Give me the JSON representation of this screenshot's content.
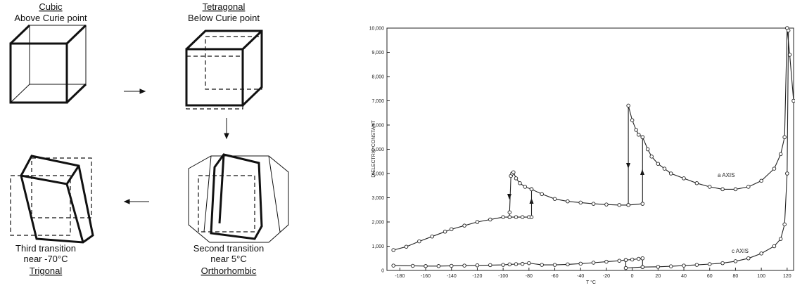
{
  "diagram": {
    "panels": [
      {
        "name": "Cubic",
        "lines": [
          "Above Curie point"
        ]
      },
      {
        "name": "Tetragonal",
        "lines": [
          "Below Curie point"
        ]
      },
      {
        "name": "Orthorhombic",
        "lines": [
          "Second transition",
          "near 5°C"
        ]
      },
      {
        "name": "Trigonal",
        "lines": [
          "Third transition",
          "near -70°C"
        ]
      }
    ]
  },
  "chart_data": {
    "type": "line",
    "x_label": "T °C",
    "y_label": "DIELECTRIC CONSTANT",
    "xlim": [
      -190,
      125
    ],
    "ylim": [
      0,
      10000
    ],
    "xticks": [
      -180,
      -160,
      -140,
      -120,
      -100,
      -80,
      -60,
      -40,
      -20,
      0,
      20,
      40,
      60,
      80,
      100,
      120
    ],
    "yticks": [
      0,
      {
        "value": 1000,
        "label": "1,000"
      },
      {
        "value": 2000,
        "label": "2,000"
      },
      {
        "value": 3000,
        "label": "3,000"
      },
      {
        "value": 4000,
        "label": "4,000"
      },
      {
        "value": 5000,
        "label": "5,000"
      },
      {
        "value": 6000,
        "label": "6,000"
      },
      {
        "value": 7000,
        "label": "7,000"
      },
      {
        "value": 8000,
        "label": "8,000"
      },
      {
        "value": 9000,
        "label": "9,000"
      },
      {
        "value": 10000,
        "label": "10,000"
      }
    ],
    "series": [
      {
        "name": "a AXIS",
        "color": "#222222",
        "x": [
          -185,
          -175,
          -165,
          -155,
          -145,
          -140,
          -130,
          -120,
          -110,
          -100,
          -95,
          -90,
          -85,
          -80,
          -78,
          -78,
          -70,
          -60,
          -50,
          -40,
          -30,
          -20,
          -10,
          -3,
          8,
          8,
          12,
          15,
          20,
          25,
          30,
          40,
          50,
          60,
          70,
          80,
          90,
          100,
          110,
          115,
          118,
          120,
          122,
          125,
          null,
          -95,
          -95,
          -94,
          -93,
          -92,
          -90,
          -87,
          -83,
          -78,
          null,
          -3,
          -3,
          0,
          3,
          5,
          8
        ],
        "values": [
          840,
          980,
          1200,
          1400,
          1600,
          1700,
          1850,
          2000,
          2100,
          2200,
          2200,
          2200,
          2200,
          2200,
          2200,
          3350,
          3150,
          2950,
          2850,
          2800,
          2750,
          2720,
          2700,
          2700,
          2750,
          5500,
          5000,
          4700,
          4400,
          4200,
          4000,
          3800,
          3600,
          3450,
          3350,
          3350,
          3450,
          3700,
          4200,
          4800,
          5500,
          10000,
          8900,
          7000,
          null,
          2200,
          2400,
          3900,
          4000,
          4050,
          3800,
          3600,
          3450,
          3350,
          null,
          2700,
          6800,
          6200,
          5800,
          5600,
          5500
        ]
      },
      {
        "name": "c AXIS",
        "color": "#222222",
        "x": [
          -185,
          -170,
          -160,
          -150,
          -140,
          -130,
          -120,
          -110,
          -100,
          -95,
          -90,
          -85,
          -80,
          -70,
          -60,
          -50,
          -40,
          -30,
          -20,
          -10,
          -5,
          0,
          5,
          8,
          8,
          20,
          30,
          40,
          50,
          60,
          70,
          80,
          90,
          100,
          110,
          115,
          118,
          120,
          121,
          null,
          -5,
          -5,
          8
        ],
        "values": [
          200,
          190,
          180,
          180,
          190,
          200,
          210,
          220,
          230,
          250,
          260,
          270,
          300,
          230,
          230,
          250,
          280,
          320,
          360,
          400,
          430,
          450,
          480,
          500,
          140,
          150,
          170,
          200,
          230,
          260,
          300,
          380,
          500,
          700,
          1000,
          1300,
          1900,
          4000,
          9900,
          null,
          430,
          100,
          140
        ]
      }
    ]
  }
}
